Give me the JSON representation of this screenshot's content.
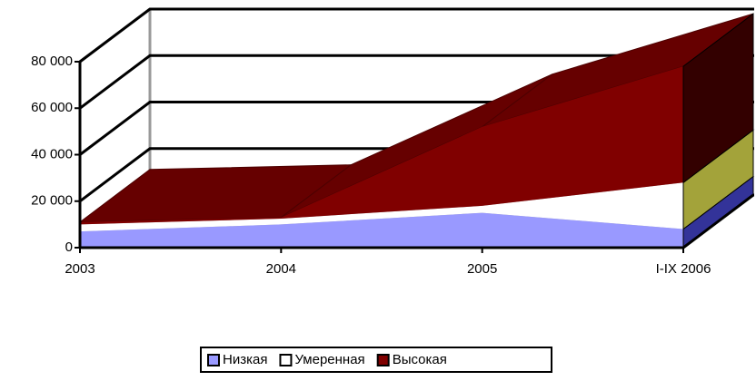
{
  "chart_data": {
    "type": "area3d",
    "categories": [
      "2003",
      "2004",
      "2005",
      "I-IX 2006"
    ],
    "series": [
      {
        "name": "Низкая",
        "color": "#9999ff",
        "side_color": "#333399",
        "values": [
          7000,
          10000,
          15000,
          8000
        ]
      },
      {
        "name": "Умеренная",
        "color": "#ffffff",
        "side_color": "#a3a33a",
        "values": [
          3000,
          2500,
          3000,
          20000
        ]
      },
      {
        "name": "Высокая",
        "color": "#800000",
        "side_color": "#330000",
        "values": [
          1000,
          500,
          34000,
          50000
        ]
      }
    ],
    "ylim": [
      0,
      80000
    ],
    "yticks": [
      0,
      {
        "value": 20000,
        "label": "20 000"
      },
      {
        "value": 40000,
        "label": "40 000"
      },
      {
        "value": 60000,
        "label": "60 000"
      },
      {
        "value": 80000,
        "label": "80 000"
      }
    ],
    "grid": true,
    "legend": "bottom"
  }
}
